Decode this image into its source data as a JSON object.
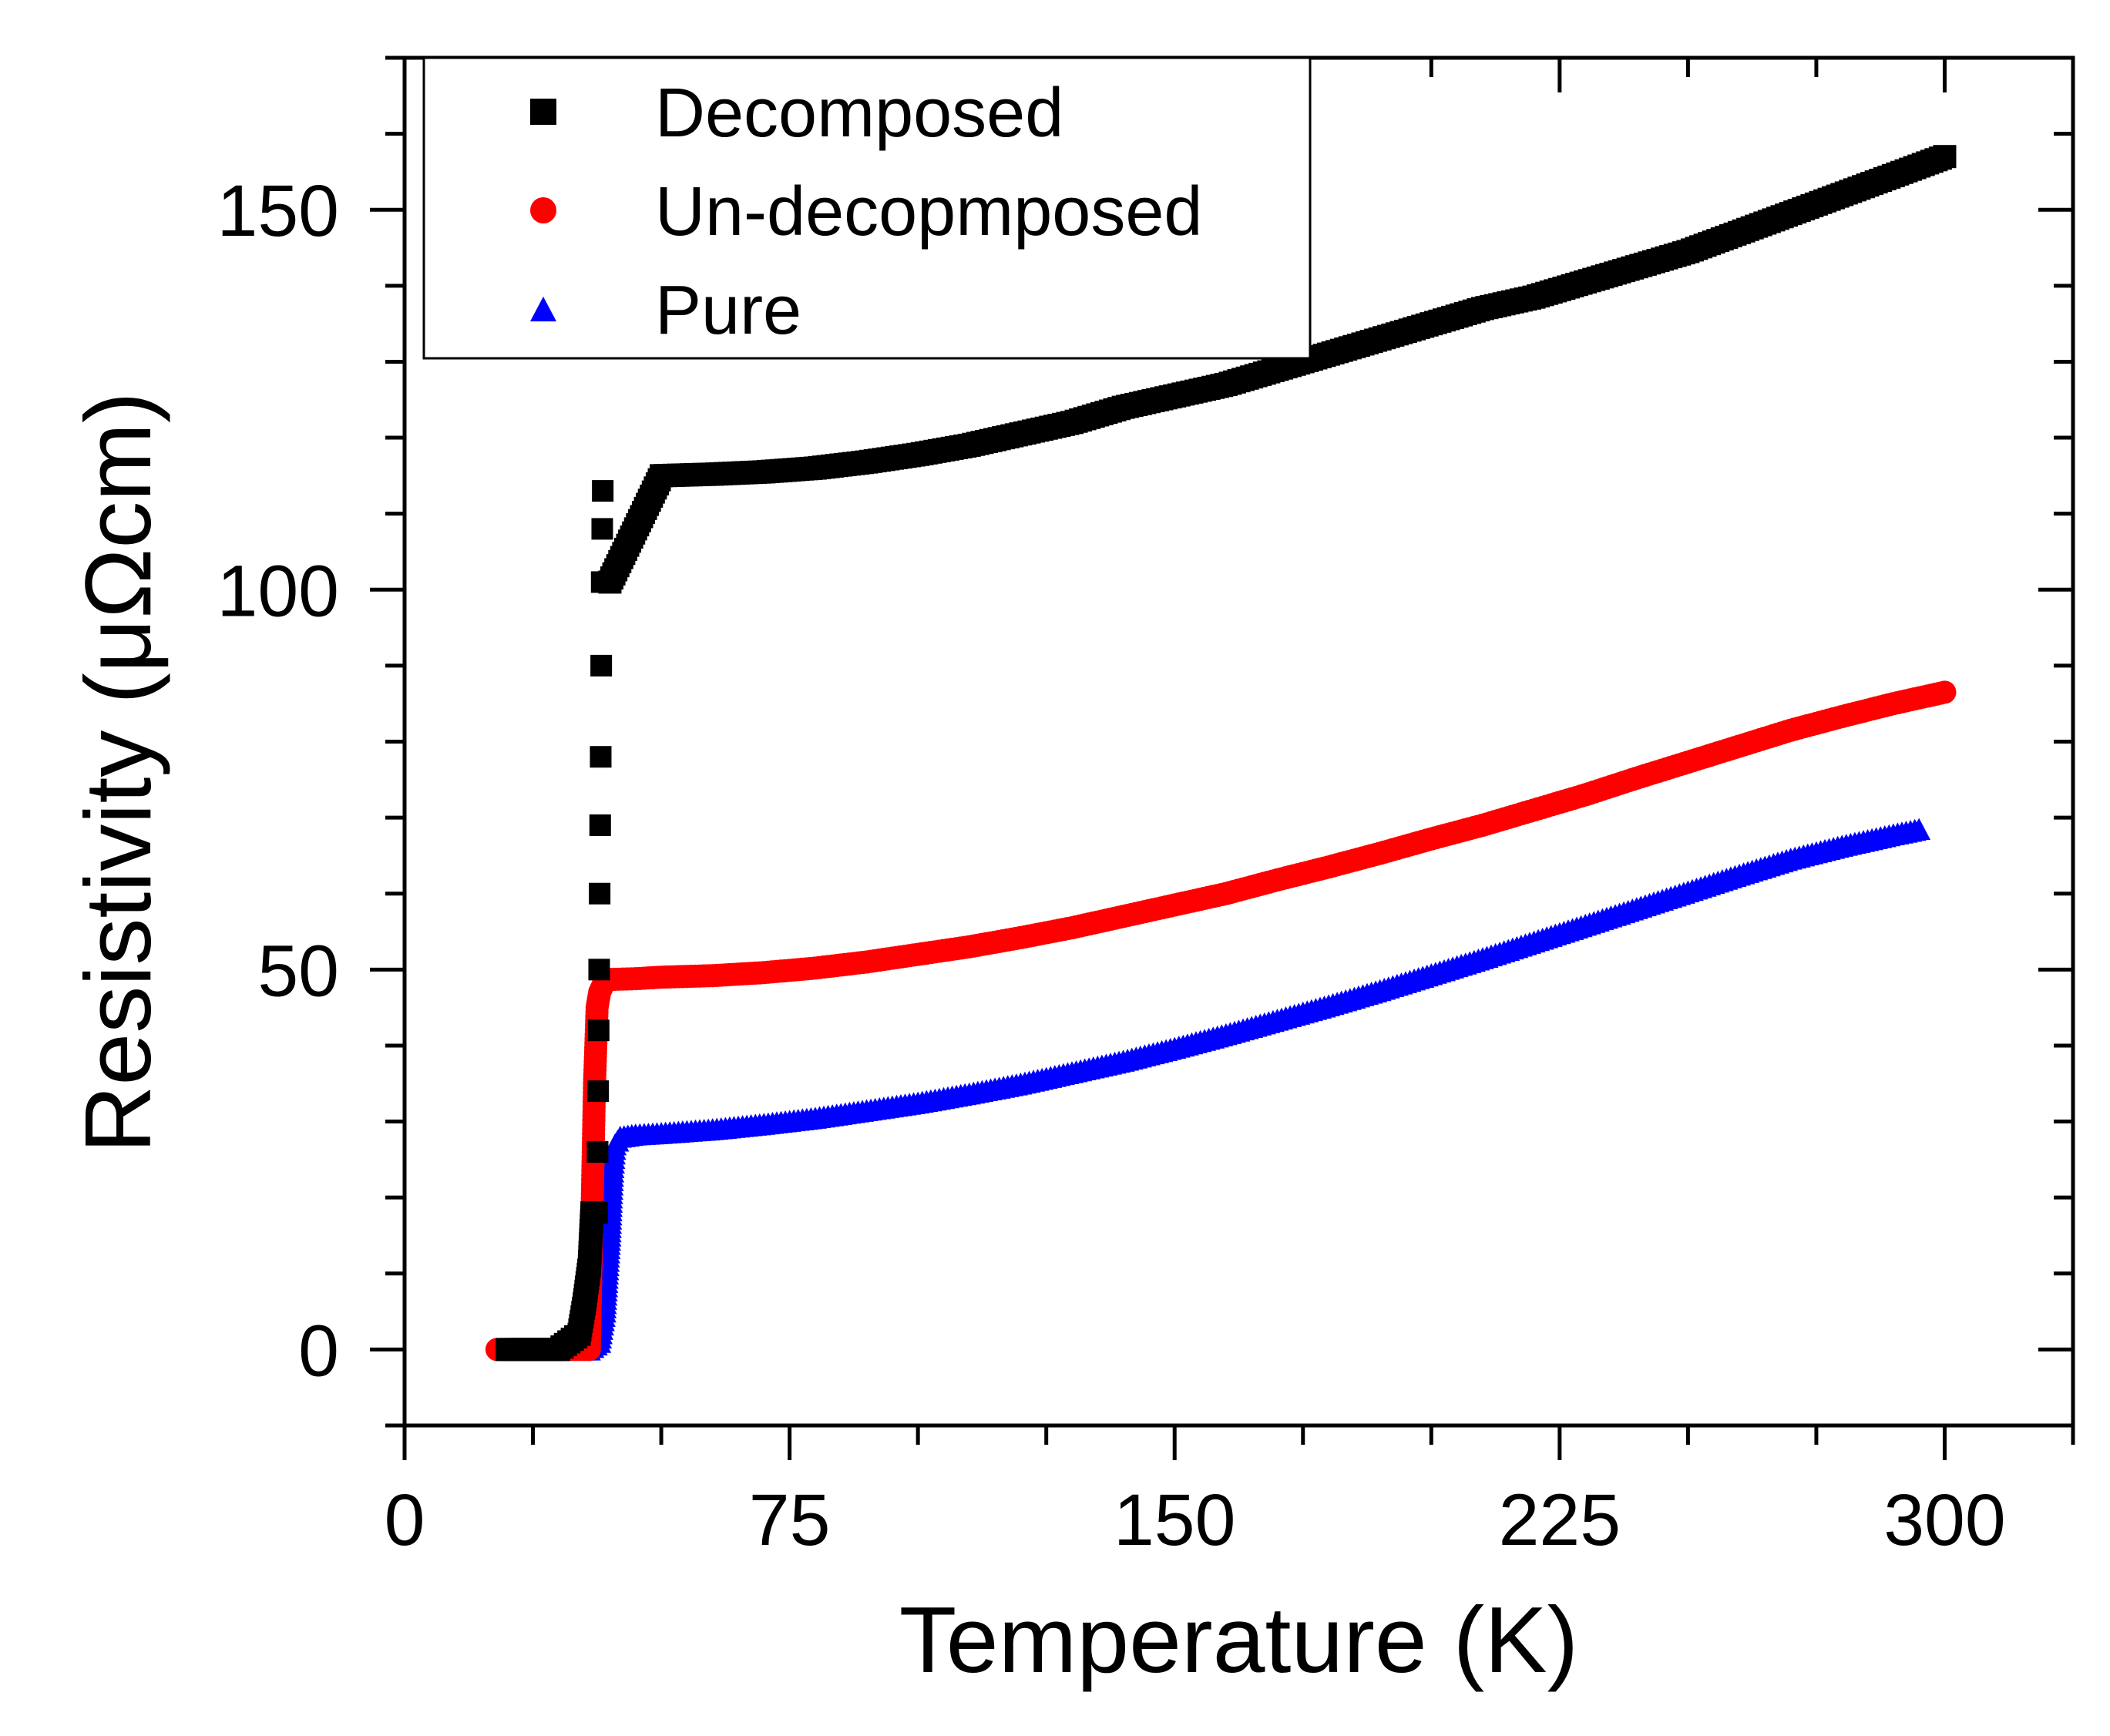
{
  "chart_data": {
    "type": "scatter",
    "title": "",
    "xlabel": "Temperature (K)",
    "ylabel": "Resistivity (μΩcm)",
    "xlim": [
      0,
      325
    ],
    "ylim": [
      -10,
      170
    ],
    "xticks": [
      0,
      75,
      150,
      225,
      300
    ],
    "yticks": [
      0,
      50,
      100,
      150
    ],
    "legend_position": "top-left",
    "series": [
      {
        "name": "Decomposed",
        "color": "#000000",
        "marker": "square",
        "x": [
          20,
          30,
          34,
          35,
          36,
          36.5,
          37,
          37.3,
          37.5,
          37.7,
          38,
          38.2,
          38.5,
          39,
          40,
          45,
          50,
          60,
          70,
          80,
          90,
          100,
          110,
          120,
          130,
          140,
          150,
          160,
          170,
          180,
          190,
          200,
          210,
          220,
          230,
          240,
          250,
          260,
          270,
          280,
          290,
          300
        ],
        "y": [
          0,
          0,
          2,
          6,
          11,
          18,
          26,
          34,
          42,
          50,
          60,
          69,
          78,
          90,
          101,
          108,
          115,
          115.2,
          115.5,
          116,
          116.8,
          117.8,
          119,
          120.5,
          122,
          124,
          125.5,
          127,
          129,
          131,
          133,
          135,
          137,
          138.5,
          140.5,
          142.5,
          144.5,
          147,
          149.5,
          152,
          154.5,
          157
        ]
      },
      {
        "name": "Un-decopmposed",
        "color": "#ff0000",
        "marker": "circle",
        "x": [
          18,
          22,
          26,
          30,
          33,
          36,
          37,
          37.5,
          38,
          39,
          40,
          45,
          50,
          60,
          70,
          80,
          90,
          100,
          110,
          120,
          130,
          140,
          150,
          160,
          170,
          180,
          190,
          200,
          210,
          220,
          230,
          240,
          250,
          260,
          270,
          280,
          290,
          300
        ],
        "y": [
          0,
          0,
          0,
          0,
          0,
          0,
          35,
          45,
          47,
          48.5,
          48.7,
          48.8,
          49,
          49.2,
          49.6,
          50.2,
          51,
          52,
          53,
          54.2,
          55.5,
          57,
          58.5,
          60,
          61.8,
          63.5,
          65.3,
          67.2,
          69,
          71,
          73,
          75.2,
          77.3,
          79.4,
          81.5,
          83.3,
          85,
          86.5
        ]
      },
      {
        "name": "Pure",
        "color": "#0000ff",
        "marker": "triangle",
        "x": [
          28,
          32,
          36,
          38,
          39,
          39.5,
          40,
          40.3,
          40.6,
          41,
          42,
          45,
          50,
          60,
          70,
          80,
          90,
          100,
          110,
          120,
          130,
          140,
          150,
          160,
          170,
          180,
          190,
          200,
          210,
          220,
          230,
          240,
          250,
          260,
          270,
          280,
          290,
          295
        ],
        "y": [
          0,
          0,
          0,
          1,
          5,
          10,
          15,
          20,
          24,
          27,
          28,
          28.3,
          28.5,
          29,
          29.7,
          30.5,
          31.5,
          32.5,
          33.7,
          35,
          36.5,
          38,
          39.7,
          41.5,
          43.4,
          45.3,
          47.3,
          49.4,
          51.5,
          53.7,
          55.9,
          58.1,
          60.3,
          62.5,
          64.6,
          66.3,
          67.8,
          68.5
        ]
      }
    ]
  }
}
